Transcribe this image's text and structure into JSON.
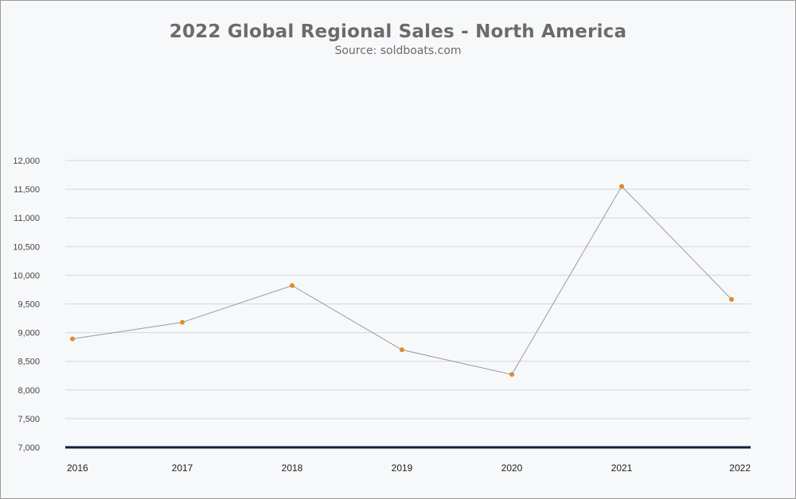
{
  "chart_data": {
    "type": "line",
    "title": "2022 Global Regional Sales - North America",
    "subtitle": "Source: soldboats.com",
    "xlabel": "",
    "ylabel": "",
    "categories": [
      "2016",
      "2017",
      "2018",
      "2019",
      "2020",
      "2021",
      "2022"
    ],
    "series": [
      {
        "values": [
          8890,
          9180,
          9820,
          8700,
          8270,
          11550,
          9580
        ]
      }
    ],
    "ylim": [
      7000,
      12000
    ],
    "yticks": [
      7000,
      7500,
      8000,
      8500,
      9000,
      9500,
      10000,
      10500,
      11000,
      11500,
      12000
    ],
    "ytick_labels": [
      "7,000",
      "7,500",
      "8,000",
      "8,500",
      "9,000",
      "9,500",
      "10,000",
      "10,500",
      "11,000",
      "11,500",
      "12,000"
    ],
    "grid": true,
    "legend": "none",
    "colors": {
      "line": "#9b9b9b",
      "marker": "#e08a2e",
      "grid": "#d4d6da",
      "baseline": "#0f1e3d",
      "background": "#f7f8fa"
    }
  }
}
